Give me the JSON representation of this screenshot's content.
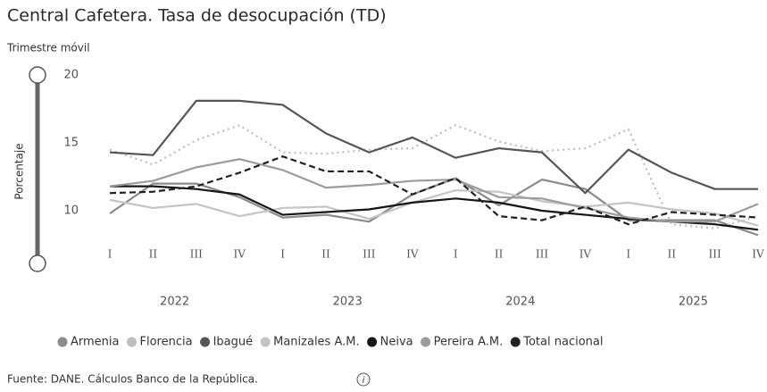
{
  "chart_data": {
    "type": "line",
    "title": "Central Cafetera. Tasa de desocupación (TD)",
    "subtitle": "Trimestre móvil",
    "y_label": "Porcentaje",
    "source": "Fuente: DANE. Cálculos Banco de la República.",
    "categories": [
      "I",
      "II",
      "III",
      "IV",
      "I",
      "II",
      "III",
      "IV",
      "I",
      "II",
      "III",
      "IV",
      "I",
      "II",
      "III",
      "IV"
    ],
    "years": [
      "2022",
      "2023",
      "2024",
      "2025"
    ],
    "ylim": [
      7.5,
      20
    ],
    "yticks": [
      10,
      15,
      20
    ],
    "grid": false,
    "legend": "bottom",
    "series": [
      {
        "name": "Armenia",
        "color": "#8a8a8a",
        "style": "solid",
        "values": [
          9.8,
          12.0,
          12.0,
          11.0,
          9.5,
          9.7,
          9.2,
          11.2,
          12.4,
          10.4,
          12.3,
          11.6,
          9.3,
          9.3,
          9.3,
          8.2
        ]
      },
      {
        "name": "Florencia",
        "color": "#bdbdbd",
        "style": "dotted",
        "values": [
          14.5,
          13.4,
          15.2,
          16.3,
          14.3,
          14.2,
          14.5,
          14.6,
          16.3,
          15.1,
          14.4,
          14.6,
          16.0,
          9.0,
          8.7,
          9.6
        ]
      },
      {
        "name": "Ibagué",
        "color": "#555555",
        "style": "solid",
        "values": [
          14.3,
          14.1,
          18.1,
          18.1,
          17.8,
          15.7,
          14.3,
          15.4,
          13.9,
          14.6,
          14.3,
          11.3,
          14.5,
          12.8,
          11.6,
          11.6
        ]
      },
      {
        "name": "Manizales A.M.",
        "color": "#c4c4c4",
        "style": "solid",
        "values": [
          10.8,
          10.2,
          10.5,
          9.6,
          10.2,
          10.3,
          9.4,
          10.6,
          11.5,
          11.4,
          10.7,
          10.3,
          10.6,
          10.1,
          9.8,
          8.9
        ]
      },
      {
        "name": "Neiva",
        "color": "#151515",
        "style": "solid",
        "values": [
          11.8,
          11.8,
          11.6,
          11.2,
          9.7,
          9.9,
          10.1,
          10.6,
          10.9,
          10.6,
          10.0,
          9.7,
          9.4,
          9.2,
          9.0,
          8.6
        ]
      },
      {
        "name": "Pereira A.M.",
        "color": "#9c9c9c",
        "style": "solid",
        "values": [
          11.8,
          12.2,
          13.2,
          13.8,
          13.0,
          11.7,
          11.9,
          12.2,
          12.3,
          11.0,
          10.9,
          10.2,
          9.5,
          9.2,
          9.2,
          10.5
        ]
      },
      {
        "name": "Total nacional",
        "color": "#222222",
        "style": "dashed",
        "values": [
          11.3,
          11.4,
          11.8,
          12.8,
          14.0,
          12.9,
          12.9,
          11.2,
          12.4,
          9.6,
          9.3,
          10.3,
          9.0,
          9.9,
          9.7,
          9.5
        ]
      }
    ]
  }
}
